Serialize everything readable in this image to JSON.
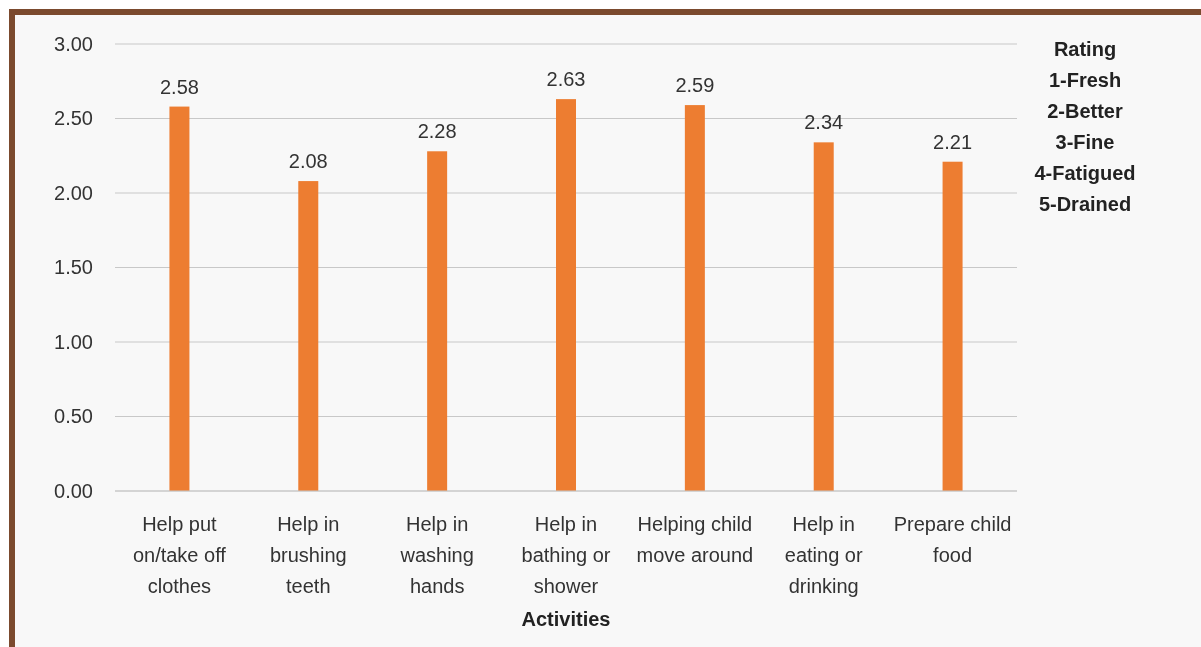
{
  "chart_data": {
    "type": "bar",
    "xlabel": "Activities",
    "categories": [
      "Help put on/take off clothes",
      "Help in brushing teeth",
      "Help in washing hands",
      "Help in bathing or shower",
      "Helping child move around",
      "Help in eating or drinking",
      "Prepare child food"
    ],
    "values": [
      2.58,
      2.08,
      2.28,
      2.63,
      2.59,
      2.34,
      2.21
    ],
    "color": "#ed7d31",
    "ylim": [
      0,
      3
    ],
    "yticks": [
      {
        "value": 0,
        "label": "0.00"
      },
      {
        "value": 0.5,
        "label": "0.50"
      },
      {
        "value": 1,
        "label": "1.00"
      },
      {
        "value": 1.5,
        "label": "1.50"
      },
      {
        "value": 2,
        "label": "2.00"
      },
      {
        "value": 2.5,
        "label": "2.50"
      },
      {
        "value": 3,
        "label": "3.00"
      }
    ],
    "grid": "y",
    "data_labels": true,
    "annotations": [
      "Rating",
      "1-Fresh",
      "2-Better",
      "3-Fine",
      "4-Fatigued",
      "5-Drained"
    ]
  }
}
